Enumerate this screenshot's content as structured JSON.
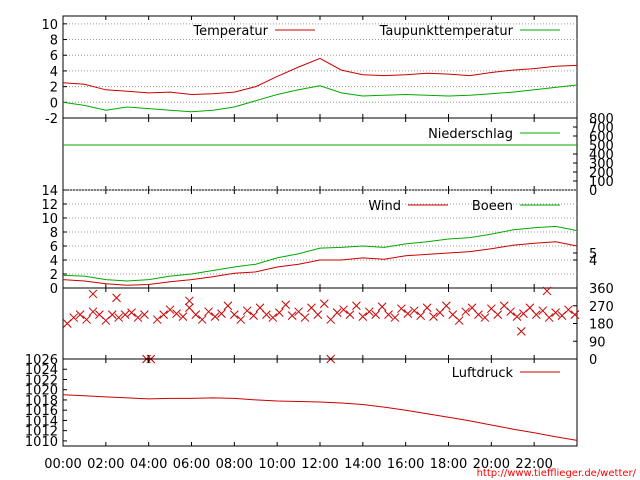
{
  "chart_data": [
    {
      "type": "line",
      "series": [
        {
          "name": "Temperatur",
          "color": "#cc0000",
          "x": [
            0,
            1,
            2,
            3,
            4,
            5,
            6,
            7,
            8,
            9,
            10,
            11,
            12,
            13,
            14,
            15,
            16,
            17,
            18,
            19,
            20,
            21,
            22,
            23,
            24
          ],
          "values": [
            2.5,
            2.3,
            1.6,
            1.4,
            1.2,
            1.3,
            1.0,
            1.1,
            1.3,
            2.0,
            3.3,
            4.5,
            5.6,
            4.1,
            3.5,
            3.4,
            3.5,
            3.7,
            3.6,
            3.4,
            3.8,
            4.1,
            4.3,
            4.6,
            4.7
          ]
        },
        {
          "name": "Taupunkttemperatur",
          "color": "#00aa00",
          "x": [
            0,
            1,
            2,
            3,
            4,
            5,
            6,
            7,
            8,
            9,
            10,
            11,
            12,
            13,
            14,
            15,
            16,
            17,
            18,
            19,
            20,
            21,
            22,
            23,
            24
          ],
          "values": [
            0.0,
            -0.4,
            -1.0,
            -0.6,
            -0.8,
            -1.0,
            -1.2,
            -1.0,
            -0.6,
            0.2,
            1.0,
            1.6,
            2.1,
            1.2,
            0.8,
            0.9,
            1.0,
            0.9,
            0.8,
            0.9,
            1.1,
            1.3,
            1.6,
            1.9,
            2.2
          ]
        }
      ],
      "yticks": [
        -2,
        0,
        2,
        4,
        6,
        8,
        10
      ],
      "ylim": [
        -2,
        11
      ],
      "xlim": [
        0,
        24
      ]
    },
    {
      "type": "line",
      "series": [
        {
          "name": "Niederschlag",
          "color": "#00aa00",
          "x": [
            0,
            24
          ],
          "values": [
            500,
            500
          ]
        }
      ],
      "yticks_right": [
        0,
        100,
        200,
        300,
        400,
        500,
        600,
        700,
        800
      ],
      "ylim": [
        0,
        800
      ],
      "xlim": [
        0,
        24
      ]
    },
    {
      "type": "line",
      "series": [
        {
          "name": "Wind",
          "color": "#cc0000",
          "x": [
            0,
            1,
            2,
            3,
            4,
            5,
            6,
            7,
            8,
            9,
            10,
            11,
            12,
            13,
            14,
            15,
            16,
            17,
            18,
            19,
            20,
            21,
            22,
            23,
            24
          ],
          "values": [
            1.2,
            1.0,
            0.6,
            0.4,
            0.5,
            0.9,
            1.2,
            1.6,
            2.1,
            2.3,
            3.0,
            3.4,
            4.0,
            4.0,
            4.3,
            4.1,
            4.6,
            4.8,
            5.0,
            5.2,
            5.6,
            6.1,
            6.4,
            6.6,
            6.0
          ]
        },
        {
          "name": "Boeen",
          "color": "#00aa00",
          "x": [
            0,
            1,
            2,
            3,
            4,
            5,
            6,
            7,
            8,
            9,
            10,
            11,
            12,
            13,
            14,
            15,
            16,
            17,
            18,
            19,
            20,
            21,
            22,
            23,
            24
          ],
          "values": [
            1.8,
            1.7,
            1.2,
            1.0,
            1.2,
            1.7,
            2.0,
            2.5,
            3.0,
            3.4,
            4.3,
            4.9,
            5.7,
            5.8,
            6.0,
            5.8,
            6.3,
            6.6,
            7.0,
            7.2,
            7.7,
            8.3,
            8.6,
            8.8,
            8.2
          ]
        }
      ],
      "yticks": [
        0,
        2,
        4,
        6,
        8,
        10,
        12,
        14
      ],
      "yticks_right": [
        4,
        5
      ],
      "ylim": [
        0,
        14
      ],
      "xlim": [
        0,
        24
      ]
    },
    {
      "type": "scatter",
      "series": [
        {
          "name": "",
          "color": "#cc0000",
          "x": [
            0.2,
            0.5,
            0.8,
            1.1,
            1.4,
            1.7,
            2.0,
            2.3,
            2.6,
            2.9,
            3.2,
            3.5,
            3.8,
            4.1,
            4.4,
            4.7,
            5.0,
            5.3,
            5.6,
            5.9,
            6.2,
            6.5,
            6.8,
            7.1,
            7.4,
            7.7,
            8.0,
            8.3,
            8.6,
            8.9,
            9.2,
            9.5,
            9.8,
            10.1,
            10.4,
            10.7,
            11.0,
            11.3,
            11.6,
            11.9,
            12.2,
            12.5,
            12.8,
            13.1,
            13.4,
            13.7,
            14.0,
            14.3,
            14.6,
            14.9,
            15.2,
            15.5,
            15.8,
            16.1,
            16.4,
            16.7,
            17.0,
            17.3,
            17.6,
            17.9,
            18.2,
            18.5,
            18.8,
            19.1,
            19.4,
            19.7,
            20.0,
            20.3,
            20.6,
            20.9,
            21.2,
            21.5,
            21.8,
            22.1,
            22.4,
            22.7,
            23.0,
            23.3,
            23.6,
            23.9,
            3.9,
            12.5,
            1.4,
            2.5,
            5.9,
            21.4,
            22.6
          ],
          "values": [
            180,
            210,
            225,
            200,
            240,
            225,
            195,
            225,
            210,
            225,
            235,
            210,
            225,
            0,
            200,
            225,
            250,
            230,
            215,
            260,
            225,
            200,
            240,
            215,
            230,
            270,
            225,
            200,
            245,
            220,
            260,
            225,
            210,
            235,
            275,
            220,
            240,
            210,
            260,
            225,
            280,
            200,
            235,
            250,
            225,
            270,
            215,
            240,
            225,
            265,
            225,
            210,
            255,
            230,
            245,
            220,
            260,
            215,
            235,
            270,
            225,
            195,
            240,
            260,
            225,
            210,
            255,
            225,
            270,
            240,
            215,
            230,
            260,
            225,
            245,
            210,
            235,
            220,
            250,
            225,
            0,
            0,
            330,
            310,
            295,
            140,
            345
          ]
        }
      ],
      "yticks_right": [
        0,
        90,
        180,
        270,
        360
      ],
      "ylim": [
        0,
        360
      ],
      "xlim": [
        0,
        24
      ]
    },
    {
      "type": "line",
      "series": [
        {
          "name": "Luftdruck",
          "color": "#cc0000",
          "x": [
            0,
            1,
            2,
            3,
            4,
            5,
            6,
            7,
            8,
            9,
            10,
            11,
            12,
            13,
            14,
            15,
            16,
            17,
            18,
            19,
            20,
            21,
            22,
            23,
            24
          ],
          "values": [
            1019.0,
            1018.8,
            1018.6,
            1018.4,
            1018.2,
            1018.3,
            1018.3,
            1018.4,
            1018.3,
            1018.0,
            1017.8,
            1017.7,
            1017.6,
            1017.4,
            1017.1,
            1016.6,
            1016.0,
            1015.3,
            1014.6,
            1013.9,
            1013.1,
            1012.3,
            1011.6,
            1010.8,
            1010.1
          ]
        }
      ],
      "yticks": [
        1010,
        1012,
        1014,
        1016,
        1018,
        1020,
        1022,
        1024,
        1026
      ],
      "ylim": [
        1009,
        1026
      ],
      "xlim": [
        0,
        24
      ]
    }
  ],
  "x_tick_labels": [
    "00:00",
    "02:00",
    "04:00",
    "06:00",
    "08:00",
    "10:00",
    "12:00",
    "14:00",
    "16:00",
    "18:00",
    "20:00",
    "22:00"
  ],
  "credit": "http://www.tiefflieger.de/wetter/"
}
